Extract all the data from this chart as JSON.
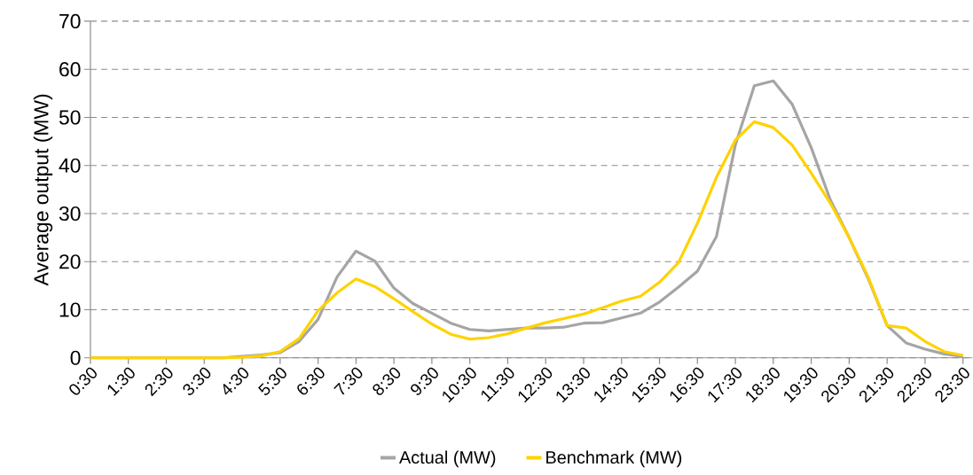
{
  "chart_data": {
    "type": "line",
    "categories": [
      "0:30",
      null,
      "1:30",
      null,
      "2:30",
      null,
      "3:30",
      null,
      "4:30",
      null,
      "5:30",
      null,
      "6:30",
      null,
      "7:30",
      null,
      "8:30",
      null,
      "9:30",
      null,
      "10:30",
      null,
      "11:30",
      null,
      "12:30",
      null,
      "13:30",
      null,
      "14:30",
      null,
      "15:30",
      null,
      "16:30",
      null,
      "17:30",
      null,
      "18:30",
      null,
      "19:30",
      null,
      "20:30",
      null,
      "21:30",
      null,
      "22:30",
      null,
      "23:30"
    ],
    "series": [
      {
        "name": "Actual (MW)",
        "color": "#a5a5a5",
        "values": [
          0,
          0,
          0,
          0,
          0,
          0,
          0,
          0,
          0.3,
          0.6,
          1.1,
          3.4,
          8.0,
          16.8,
          22.2,
          20.1,
          14.5,
          11.3,
          9.3,
          7.2,
          5.9,
          5.6,
          5.9,
          6.2,
          6.2,
          6.4,
          7.2,
          7.3,
          8.3,
          9.3,
          11.6,
          14.7,
          18.0,
          25.2,
          44.3,
          56.6,
          57.6,
          52.7,
          43.7,
          32.9,
          25.0,
          16.5,
          6.7,
          3.1,
          1.8,
          0.8,
          0.3
        ]
      },
      {
        "name": "Benchmark (MW)",
        "color": "#ffd200",
        "values": [
          0,
          0,
          0,
          0,
          0,
          0,
          0,
          0,
          0.1,
          0.4,
          1.3,
          4.0,
          9.8,
          13.5,
          16.4,
          14.8,
          12.3,
          9.6,
          7.0,
          4.9,
          3.9,
          4.2,
          5.0,
          6.2,
          7.3,
          8.2,
          9.1,
          10.4,
          11.8,
          12.8,
          15.7,
          19.8,
          28.0,
          37.5,
          45.3,
          49.1,
          47.9,
          44.2,
          38.4,
          32.2,
          25.0,
          16.8,
          6.7,
          6.2,
          3.4,
          1.3,
          0.5
        ]
      }
    ],
    "ylabel": "Average output (MW)",
    "ylim": [
      0,
      70
    ],
    "yticks": [
      0,
      10,
      20,
      30,
      40,
      50,
      60,
      70
    ],
    "grid": "y",
    "legend": "bottom"
  }
}
